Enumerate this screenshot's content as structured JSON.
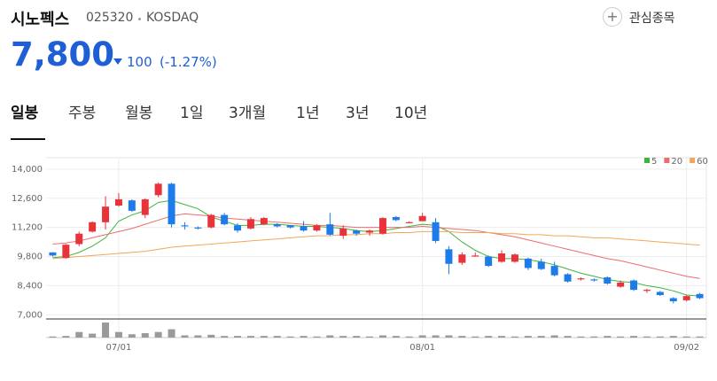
{
  "header": {
    "title": "시노펙스",
    "code": "025320",
    "market": "KOSDAQ",
    "button": "관심종목",
    "price": "7,800",
    "change": "100",
    "change_pct": "(-1.27%)"
  },
  "tabs": {
    "items": [
      "일봉",
      "주봉",
      "월봉",
      "1일",
      "3개월",
      "1년",
      "3년",
      "10년"
    ],
    "active": 0
  },
  "chart_data": {
    "type": "candlestick",
    "categories": [
      null,
      null,
      null,
      null,
      null,
      "07/01",
      null,
      null,
      null,
      null,
      null,
      null,
      null,
      null,
      null,
      null,
      null,
      null,
      null,
      null,
      null,
      null,
      null,
      null,
      null,
      null,
      null,
      null,
      "08/01",
      null,
      null,
      null,
      null,
      null,
      null,
      null,
      null,
      null,
      null,
      null,
      null,
      null,
      null,
      null,
      null,
      null,
      null,
      null,
      "09/02",
      null
    ],
    "open": [
      10000,
      9730,
      10400,
      11000,
      11450,
      12250,
      12500,
      11800,
      12750,
      13300,
      11300,
      11200,
      11200,
      11800,
      11300,
      11150,
      11350,
      11350,
      11300,
      11250,
      11050,
      11350,
      10800,
      11050,
      10950,
      10900,
      11700,
      11400,
      11500,
      11450,
      10150,
      9500,
      9800,
      9800,
      9550,
      9550,
      9700,
      9550,
      9350,
      8950,
      8700,
      8700,
      8800,
      8350,
      8650,
      8150,
      8100,
      7800,
      7700,
      8000
    ],
    "high": [
      10000,
      10400,
      11000,
      11500,
      12700,
      12850,
      12550,
      12600,
      13350,
      13350,
      11450,
      11250,
      11850,
      11900,
      11400,
      11700,
      11700,
      11400,
      11300,
      11500,
      11350,
      11900,
      11300,
      11100,
      11100,
      11700,
      11750,
      11500,
      11900,
      11650,
      10300,
      10000,
      10000,
      9850,
      10100,
      9950,
      9750,
      9700,
      9550,
      9000,
      8800,
      8750,
      8850,
      8650,
      8700,
      8250,
      8150,
      7850,
      7950,
      8050
    ],
    "low": [
      9800,
      9700,
      10300,
      10950,
      11100,
      12200,
      11950,
      11650,
      12650,
      11200,
      11100,
      11100,
      11150,
      11300,
      10950,
      11100,
      11300,
      11200,
      11150,
      11000,
      11000,
      10800,
      10650,
      10800,
      10800,
      10850,
      11500,
      11400,
      11500,
      10450,
      8950,
      9400,
      9800,
      9300,
      9500,
      9500,
      9150,
      9150,
      8850,
      8550,
      8650,
      8600,
      8450,
      8300,
      8150,
      8050,
      7900,
      7550,
      7650,
      7750
    ],
    "close": [
      9850,
      10370,
      10900,
      11450,
      12200,
      12550,
      12000,
      12550,
      13300,
      11350,
      11250,
      11150,
      11800,
      11350,
      11050,
      11600,
      11650,
      11250,
      11200,
      11050,
      11300,
      10850,
      11150,
      10900,
      11050,
      11650,
      11550,
      11450,
      11750,
      10550,
      9450,
      9900,
      9850,
      9350,
      9950,
      9900,
      9250,
      9200,
      8900,
      8600,
      8750,
      8650,
      8500,
      8550,
      8200,
      8200,
      7950,
      7650,
      7900,
      7800
    ],
    "up_color": "#e8333a",
    "down_color": "#1d7bea",
    "series": [
      {
        "name": "5",
        "color": "#3db53d",
        "values": [
          9750,
          9800,
          10000,
          10300,
          10700,
          11500,
          11800,
          12000,
          12400,
          12500,
          12300,
          12100,
          11700,
          11500,
          11300,
          11300,
          11350,
          11350,
          11300,
          11250,
          11250,
          11200,
          11150,
          11050,
          11000,
          11050,
          11150,
          11250,
          11350,
          11300,
          11000,
          10500,
          10100,
          9800,
          9700,
          9700,
          9650,
          9550,
          9400,
          9200,
          9000,
          8850,
          8700,
          8600,
          8550,
          8400,
          8300,
          8150,
          7950,
          7900
        ]
      },
      {
        "name": "20",
        "color": "#ef6b6b",
        "values": [
          10400,
          10450,
          10550,
          10700,
          10850,
          11000,
          11150,
          11350,
          11550,
          11750,
          11850,
          11800,
          11750,
          11650,
          11600,
          11550,
          11500,
          11450,
          11400,
          11350,
          11300,
          11300,
          11250,
          11200,
          11200,
          11200,
          11200,
          11200,
          11250,
          11200,
          11150,
          11100,
          11050,
          10950,
          10850,
          10750,
          10600,
          10450,
          10300,
          10150,
          10000,
          9850,
          9700,
          9600,
          9450,
          9300,
          9150,
          9000,
          8850,
          8750
        ]
      },
      {
        "name": "60",
        "color": "#f3a65a",
        "values": [
          9700,
          9750,
          9800,
          9850,
          9900,
          9950,
          10000,
          10050,
          10150,
          10250,
          10300,
          10350,
          10400,
          10450,
          10500,
          10550,
          10600,
          10650,
          10700,
          10750,
          10800,
          10800,
          10850,
          10850,
          10900,
          10900,
          10950,
          10950,
          11000,
          11000,
          11000,
          10950,
          10950,
          10950,
          10900,
          10900,
          10850,
          10850,
          10800,
          10800,
          10750,
          10700,
          10700,
          10650,
          10600,
          10550,
          10500,
          10450,
          10400,
          10350
        ]
      }
    ],
    "volume": [
      2,
      3,
      10,
      7,
      27,
      10,
      6,
      8,
      10,
      15,
      4,
      4,
      5,
      3,
      3,
      3,
      3,
      3,
      2,
      3,
      2,
      4,
      3,
      3,
      2,
      4,
      3,
      2,
      4,
      4,
      4,
      3,
      2,
      3,
      3,
      2,
      3,
      3,
      4,
      3,
      2,
      2,
      3,
      2,
      3,
      2,
      2,
      3,
      2,
      2
    ],
    "volume_color": "#9a9a9a",
    "ylim": [
      6800,
      14550
    ],
    "yticks": [
      {
        "value": 7000,
        "label": "7,000"
      },
      {
        "value": 8400,
        "label": "8,400"
      },
      {
        "value": 9800,
        "label": "9,800"
      },
      {
        "value": 11200,
        "label": "11,200"
      },
      {
        "value": 12600,
        "label": "12,600"
      },
      {
        "value": 14000,
        "label": "14,000"
      }
    ],
    "grid": true
  }
}
